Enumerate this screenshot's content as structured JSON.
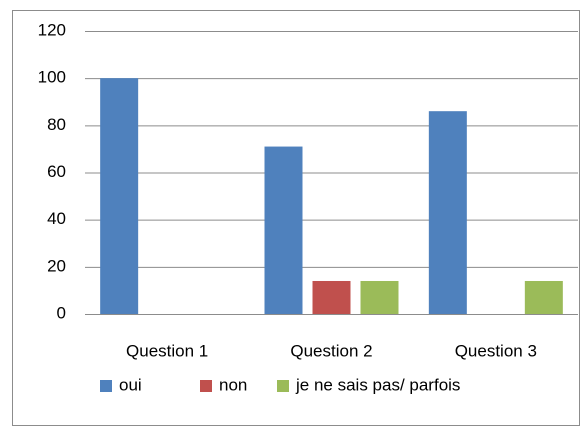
{
  "chart_data": {
    "type": "bar",
    "categories": [
      "Question 1",
      "Question 2",
      "Question 3"
    ],
    "series": [
      {
        "name": "oui",
        "color": "#4f81bd",
        "values": [
          100,
          71,
          86
        ]
      },
      {
        "name": "non",
        "color": "#c0504d",
        "values": [
          0,
          14,
          0
        ]
      },
      {
        "name": "je ne sais pas/ parfois",
        "color": "#9bbb59",
        "values": [
          0,
          14,
          14
        ]
      }
    ],
    "ylim": [
      0,
      120
    ],
    "yticks": [
      0,
      20,
      40,
      60,
      80,
      100,
      120
    ],
    "grid": true,
    "legend": "bottom"
  }
}
